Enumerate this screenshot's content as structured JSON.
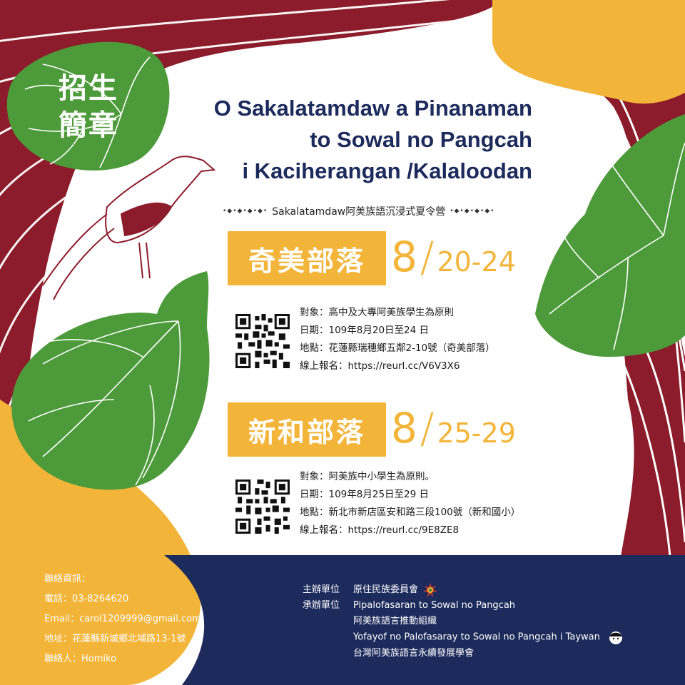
{
  "badge": {
    "line1": "招生",
    "line2": "簡章"
  },
  "title": {
    "line1": "O Sakalatamdaw a Pinanaman",
    "line2": "to Sowal no Pangcah",
    "line3": "i Kaciherangan /Kalaloodan"
  },
  "subtitle": "Sakalatamdaw阿美族語沉浸式夏令營",
  "sessions": [
    {
      "village": "奇美部落",
      "month": "8",
      "days": "20-24",
      "target": "對象：高中及大專阿美族學生為原則",
      "date": "日期：109年8月20日至24 日",
      "location": "地點：花蓮縣瑞穗鄉五鄰2-10號（奇美部落）",
      "signup": "線上報名：https://reurl.cc/V6V3X6"
    },
    {
      "village": "新和部落",
      "month": "8",
      "days": "25-29",
      "target": "對象：阿美族中小學生為原則。",
      "date": "日期：109年8月25日至29 日",
      "location": "地點：新北市新店區安和路三段100號（新和國小）",
      "signup": "線上報名：https://reurl.cc/9E8ZE8"
    }
  ],
  "contact": {
    "heading": "聯絡資訊：",
    "phone": "電話：03-8264620",
    "email": "Email：carol1209999@gmail.com",
    "address": "地址：花蓮縣新城鄉北埔路13-1號",
    "person": "聯絡人：Homiko"
  },
  "organizers": {
    "host_label": "主辦單位",
    "host": "原住民族委員會",
    "co_label": "承辦單位",
    "co1": "Pipalofasaran to Sowal no Pangcah",
    "co2": "阿美族語言推動組織",
    "co3": "Yofayof no Palofasaray to Sowal no Pangcah i Taywan",
    "co4": "台灣阿美族語言永續發展學會"
  },
  "colors": {
    "maroon": "#8c1c2b",
    "yellow": "#f2b53a",
    "green": "#4c9a39",
    "navy": "#1d2b5c"
  }
}
